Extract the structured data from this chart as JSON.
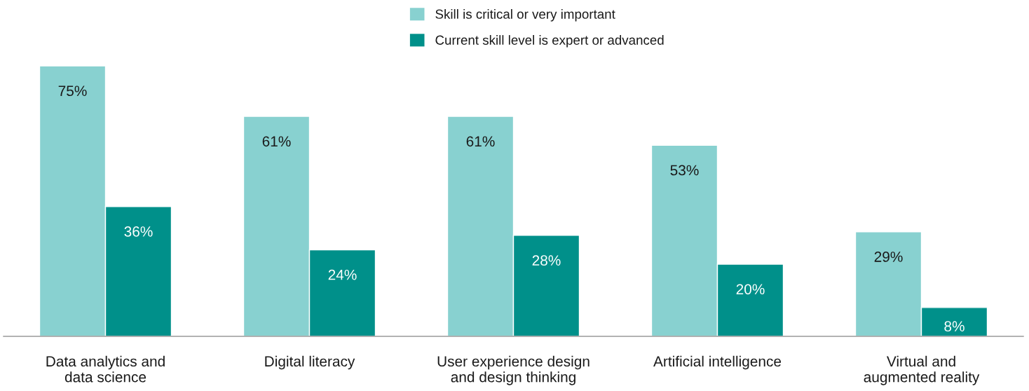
{
  "chart_data": {
    "type": "bar",
    "categories": [
      "Data analytics and\ndata science",
      "Digital literacy",
      "User experience design\nand design thinking",
      "Artificial intelligence",
      "Virtual and\naugmented reality"
    ],
    "series": [
      {
        "name": "Skill is critical or very important",
        "color": "#88d1d0",
        "values": [
          75,
          61,
          61,
          53,
          29
        ],
        "value_labels": [
          "75%",
          "61%",
          "61%",
          "53%",
          "29%"
        ]
      },
      {
        "name": "Current skill level is expert or advanced",
        "color": "#00908a",
        "values": [
          36,
          24,
          28,
          20,
          8
        ],
        "value_labels": [
          "36%",
          "24%",
          "28%",
          "20%",
          "8%"
        ]
      }
    ],
    "legend": "top",
    "grid": false
  }
}
